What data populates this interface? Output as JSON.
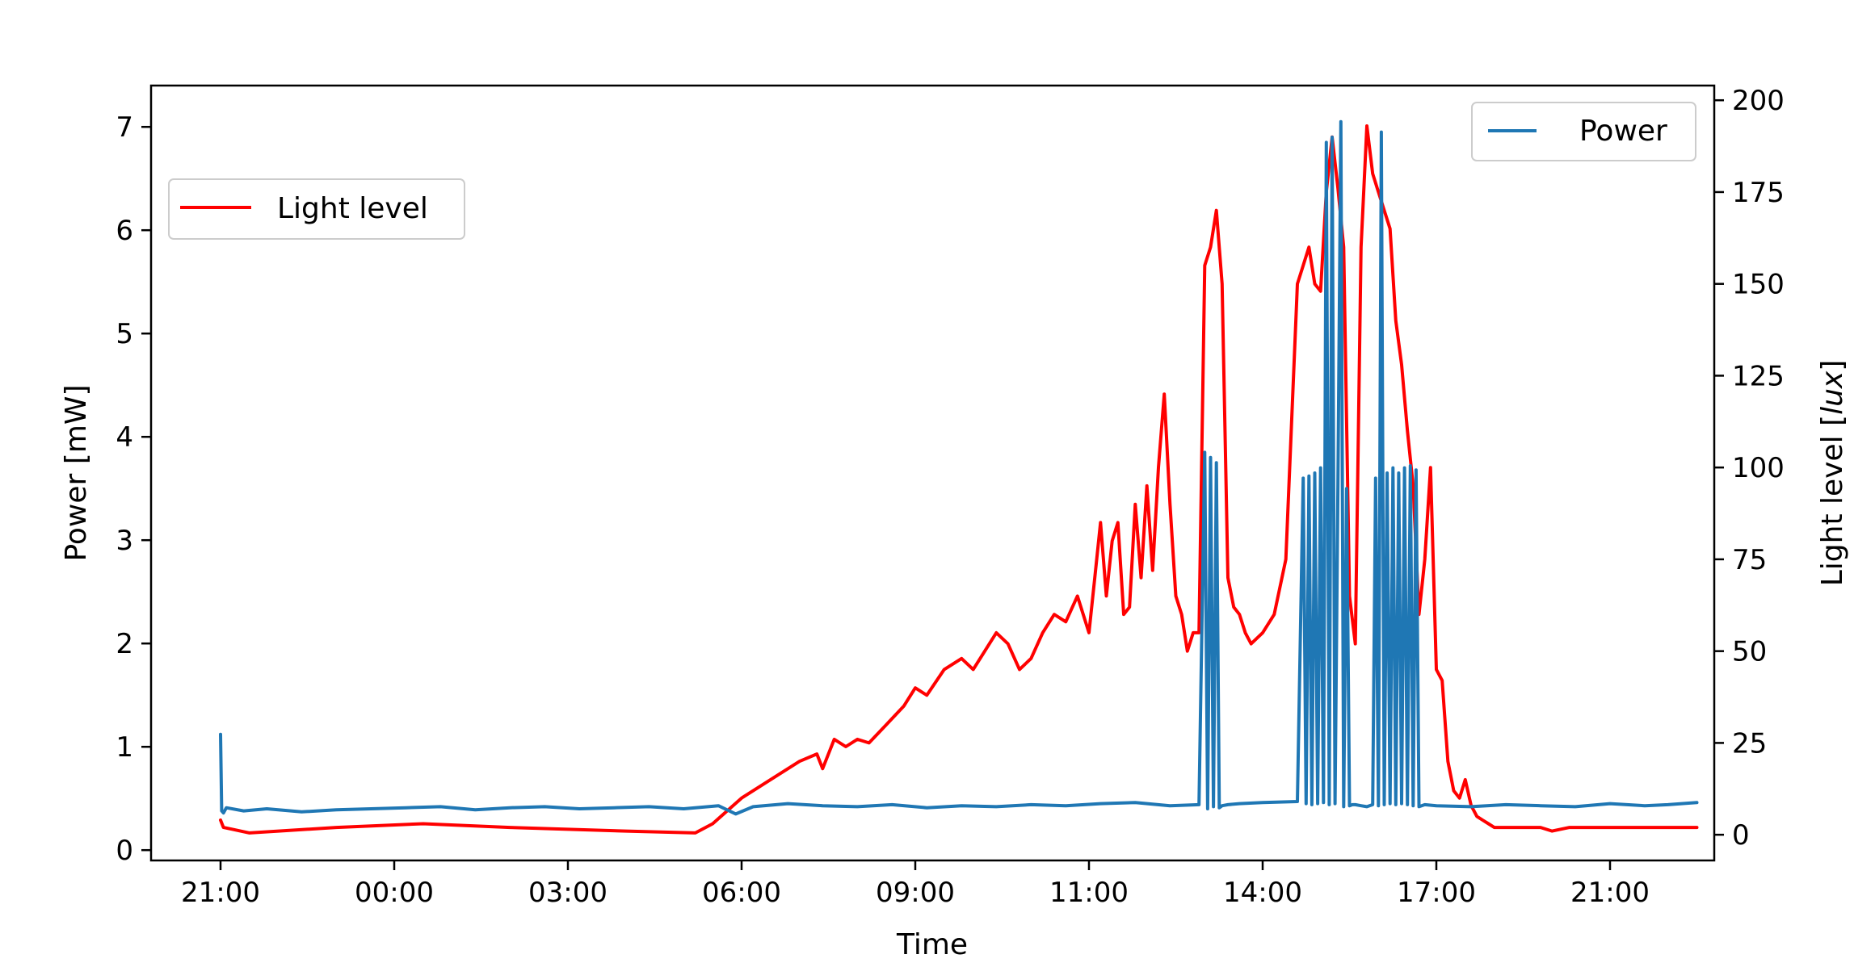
{
  "chart_data": {
    "type": "line",
    "xlabel": "Time",
    "ylabel_left": "Power [mW]",
    "ylabel_right_prefix": "Light level [",
    "ylabel_right_unit": "lux",
    "ylabel_right_suffix": "]",
    "x_ticks": [
      "21:00",
      "00:00",
      "03:00",
      "06:00",
      "09:00",
      "11:00",
      "14:00",
      "17:00",
      "21:00"
    ],
    "x_range_hours": [
      19.8,
      46.8
    ],
    "y_left_ticks": [
      "0",
      "1",
      "2",
      "3",
      "4",
      "5",
      "6",
      "7"
    ],
    "y_left_range": [
      -0.1,
      7.4
    ],
    "y_right_ticks": [
      "0",
      "25",
      "50",
      "75",
      "100",
      "125",
      "150",
      "175",
      "200"
    ],
    "y_right_range": [
      -7,
      204
    ],
    "grid": false,
    "legend_power": {
      "label": "Power",
      "color": "#1f77b4",
      "position": "top-right"
    },
    "legend_light": {
      "label": "Light level",
      "color": "#ff0000",
      "position": "upper-left"
    },
    "series": [
      {
        "name": "Power",
        "axis": "left",
        "color": "#1f77b4",
        "x_hours": [
          21.0,
          21.02,
          21.05,
          21.1,
          21.4,
          21.8,
          22.4,
          23.0,
          23.6,
          24.2,
          24.8,
          25.4,
          26.0,
          26.6,
          27.2,
          27.8,
          28.4,
          29.0,
          29.6,
          29.9,
          30.2,
          30.8,
          31.4,
          32.0,
          32.6,
          33.2,
          33.8,
          34.4,
          35.0,
          35.6,
          36.2,
          36.8,
          37.4,
          37.9,
          38.0,
          38.05,
          38.1,
          38.15,
          38.2,
          38.25,
          38.3,
          38.4,
          38.6,
          39.0,
          39.6,
          39.7,
          39.75,
          39.8,
          39.85,
          39.9,
          39.95,
          40.0,
          40.05,
          40.1,
          40.15,
          40.2,
          40.25,
          40.3,
          40.35,
          40.4,
          40.45,
          40.5,
          40.55,
          40.6,
          40.7,
          40.8,
          40.9,
          40.95,
          41.0,
          41.05,
          41.1,
          41.15,
          41.2,
          41.25,
          41.3,
          41.35,
          41.4,
          41.45,
          41.5,
          41.55,
          41.6,
          41.65,
          41.7,
          41.8,
          42.0,
          42.6,
          43.2,
          43.8,
          44.4,
          45.0,
          45.6,
          46.0,
          46.5
        ],
        "y": [
          1.12,
          0.38,
          0.36,
          0.41,
          0.38,
          0.4,
          0.37,
          0.39,
          0.4,
          0.41,
          0.42,
          0.39,
          0.41,
          0.42,
          0.4,
          0.41,
          0.42,
          0.4,
          0.43,
          0.35,
          0.42,
          0.45,
          0.43,
          0.42,
          0.44,
          0.41,
          0.43,
          0.42,
          0.44,
          0.43,
          0.45,
          0.46,
          0.43,
          0.44,
          3.85,
          0.4,
          3.8,
          0.42,
          3.75,
          0.41,
          0.43,
          0.44,
          0.45,
          0.46,
          0.47,
          3.6,
          0.45,
          3.62,
          0.44,
          3.65,
          0.45,
          3.7,
          0.46,
          6.85,
          0.44,
          6.9,
          0.45,
          3.55,
          7.05,
          0.42,
          3.5,
          0.43,
          0.44,
          0.44,
          0.43,
          0.42,
          0.44,
          3.6,
          0.43,
          6.95,
          0.44,
          3.65,
          0.45,
          3.7,
          0.44,
          3.65,
          0.45,
          3.7,
          0.44,
          3.72,
          0.43,
          3.68,
          0.42,
          0.44,
          0.43,
          0.42,
          0.44,
          0.43,
          0.42,
          0.45,
          0.43,
          0.44,
          0.46
        ]
      },
      {
        "name": "Light level",
        "axis": "right",
        "color": "#ff0000",
        "x_hours": [
          21.0,
          21.05,
          21.2,
          21.5,
          22.0,
          23.0,
          24.5,
          26.0,
          28.0,
          29.2,
          29.5,
          30.0,
          30.5,
          31.0,
          31.3,
          31.4,
          31.6,
          31.8,
          32.0,
          32.2,
          32.5,
          32.8,
          33.0,
          33.2,
          33.5,
          33.8,
          34.0,
          34.2,
          34.4,
          34.6,
          34.8,
          35.0,
          35.2,
          35.4,
          35.6,
          35.8,
          36.0,
          36.1,
          36.2,
          36.3,
          36.4,
          36.5,
          36.6,
          36.7,
          36.8,
          36.9,
          37.0,
          37.1,
          37.2,
          37.3,
          37.4,
          37.5,
          37.6,
          37.7,
          37.8,
          37.9,
          38.0,
          38.1,
          38.2,
          38.3,
          38.4,
          38.5,
          38.6,
          38.7,
          38.8,
          39.0,
          39.2,
          39.4,
          39.6,
          39.7,
          39.8,
          39.9,
          40.0,
          40.1,
          40.2,
          40.3,
          40.4,
          40.5,
          40.6,
          40.7,
          40.8,
          40.9,
          41.0,
          41.1,
          41.2,
          41.3,
          41.4,
          41.5,
          41.6,
          41.7,
          41.8,
          41.9,
          42.0,
          42.1,
          42.2,
          42.3,
          42.4,
          42.5,
          42.6,
          42.7,
          42.8,
          42.9,
          43.0,
          43.2,
          43.5,
          43.8,
          44.0,
          44.3,
          44.6,
          45.0,
          45.5,
          46.0,
          46.5
        ],
        "y": [
          4,
          2,
          1.5,
          0.5,
          1,
          2,
          3,
          2,
          1,
          0.5,
          3,
          10,
          15,
          20,
          22,
          18,
          26,
          24,
          26,
          25,
          30,
          35,
          40,
          38,
          45,
          48,
          45,
          50,
          55,
          52,
          45,
          48,
          55,
          60,
          58,
          65,
          55,
          70,
          85,
          65,
          80,
          85,
          60,
          62,
          90,
          70,
          95,
          72,
          100,
          120,
          90,
          65,
          60,
          50,
          55,
          55,
          155,
          160,
          170,
          150,
          70,
          62,
          60,
          55,
          52,
          55,
          60,
          75,
          150,
          155,
          160,
          150,
          148,
          175,
          190,
          176,
          160,
          65,
          52,
          160,
          193,
          180,
          175,
          170,
          165,
          140,
          128,
          110,
          95,
          60,
          75,
          100,
          45,
          42,
          20,
          12,
          10,
          15,
          8,
          5,
          4,
          3,
          2,
          2,
          2,
          2,
          1,
          2,
          2,
          2,
          2,
          2,
          2
        ]
      }
    ]
  }
}
